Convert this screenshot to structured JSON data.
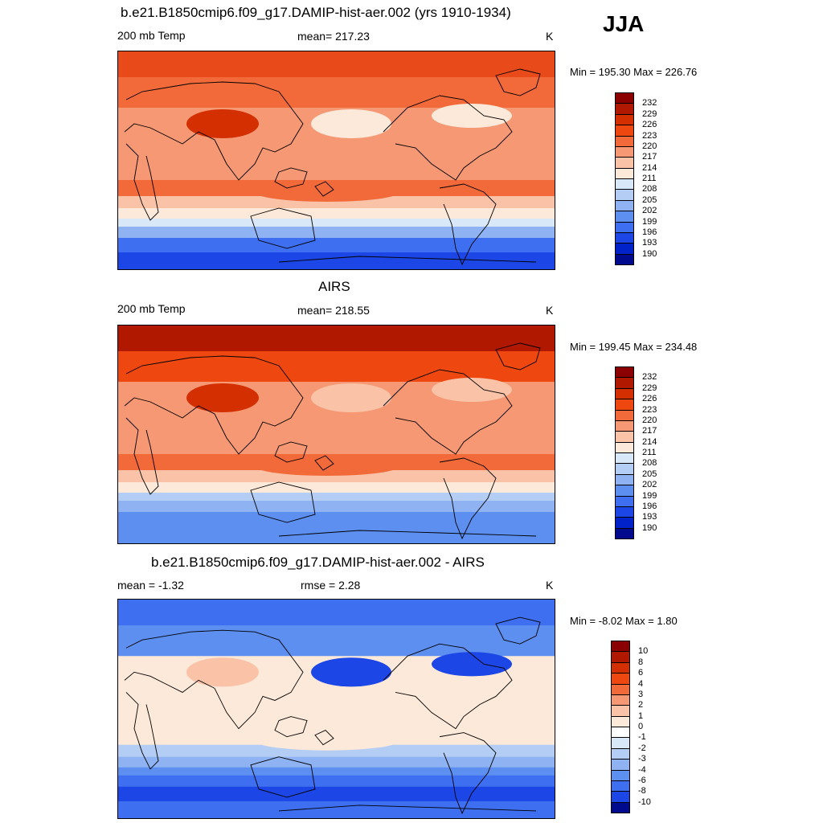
{
  "season": "JJA",
  "panels": [
    {
      "title": "b.e21.B1850cmip6.f09_g17.DAMIP-hist-aer.002 (yrs 1910-1934)",
      "left_label": "200 mb Temp",
      "center_label": "mean= 217.23",
      "units": "K",
      "minmax": "Min = 195.30 Max = 226.76",
      "colorbar": {
        "levels": [
          "232",
          "229",
          "226",
          "223",
          "220",
          "217",
          "214",
          "211",
          "208",
          "205",
          "202",
          "199",
          "196",
          "193",
          "190"
        ],
        "colors": [
          "#8b0000",
          "#b01800",
          "#d42f00",
          "#ee4810",
          "#f26a3a",
          "#f59873",
          "#fac3a7",
          "#fde9d9",
          "#d9e8f9",
          "#b4cdf5",
          "#8eb2f2",
          "#5d8ff0",
          "#3d6ff0",
          "#1c47e6",
          "#0022c8",
          "#000a8c"
        ]
      },
      "map_colors": {
        "polar_north": "#e84a1a",
        "mid_north": "#f26a3a",
        "tibet": "#d42f00",
        "trop": "#f59873",
        "pacific_cool": "#fde9d9",
        "sh_subtrop": "#f26a3a",
        "sh_mid": "#fac3a7",
        "sh_high1": "#fde9d9",
        "sh_high2": "#d9e8f9",
        "sh_high3": "#8eb2f2",
        "sh_high4": "#3d6ff0",
        "sh_high5": "#1c47e6"
      }
    },
    {
      "title": "AIRS",
      "left_label": "200 mb Temp",
      "center_label": "mean= 218.55",
      "units": "K",
      "minmax": "Min = 199.45 Max = 234.48",
      "colorbar": {
        "levels": [
          "232",
          "229",
          "226",
          "223",
          "220",
          "217",
          "214",
          "211",
          "208",
          "205",
          "202",
          "199",
          "196",
          "193",
          "190"
        ],
        "colors": [
          "#8b0000",
          "#b01800",
          "#d42f00",
          "#ee4810",
          "#f26a3a",
          "#f59873",
          "#fac3a7",
          "#fde9d9",
          "#d9e8f9",
          "#b4cdf5",
          "#8eb2f2",
          "#5d8ff0",
          "#3d6ff0",
          "#1c47e6",
          "#0022c8",
          "#000a8c"
        ]
      },
      "map_colors": {
        "polar_north": "#b01800",
        "mid_north": "#ee4810",
        "tibet": "#d42f00",
        "trop": "#f59873",
        "pacific_cool": "#fac3a7",
        "sh_subtrop": "#f26a3a",
        "sh_mid": "#fac3a7",
        "sh_high1": "#fde9d9",
        "sh_high2": "#b4cdf5",
        "sh_high3": "#8eb2f2",
        "sh_high4": "#5d8ff0",
        "sh_high5": "#5d8ff0"
      }
    },
    {
      "title": "b.e21.B1850cmip6.f09_g17.DAMIP-hist-aer.002 - AIRS",
      "left_label": "mean =  -1.32",
      "center_label": "rmse =   2.28",
      "units": "K",
      "minmax": "Min =  -8.02 Max =   1.80",
      "colorbar": {
        "levels": [
          "10",
          "8",
          "6",
          "4",
          "3",
          "2",
          "1",
          "0",
          "-1",
          "-2",
          "-3",
          "-4",
          "-6",
          "-8",
          "-10"
        ],
        "colors": [
          "#8b0000",
          "#b01800",
          "#d42f00",
          "#ee4810",
          "#f26a3a",
          "#f59873",
          "#fac3a7",
          "#fde9d9",
          "#ffffff",
          "#d9e8f9",
          "#b4cdf5",
          "#8eb2f2",
          "#5d8ff0",
          "#3d6ff0",
          "#1c47e6",
          "#000a8c"
        ]
      },
      "map_colors": {
        "polar_north": "#3d6ff0",
        "mid_north": "#5d8ff0",
        "tibet": "#fac3a7",
        "trop": "#fde9d9",
        "pacific_cool": "#1c47e6",
        "sh_subtrop": "#fde9d9",
        "sh_mid": "#b4cdf5",
        "sh_high1": "#8eb2f2",
        "sh_high2": "#5d8ff0",
        "sh_high3": "#3d6ff0",
        "sh_high4": "#1c47e6",
        "sh_high5": "#3d6ff0"
      }
    }
  ]
}
